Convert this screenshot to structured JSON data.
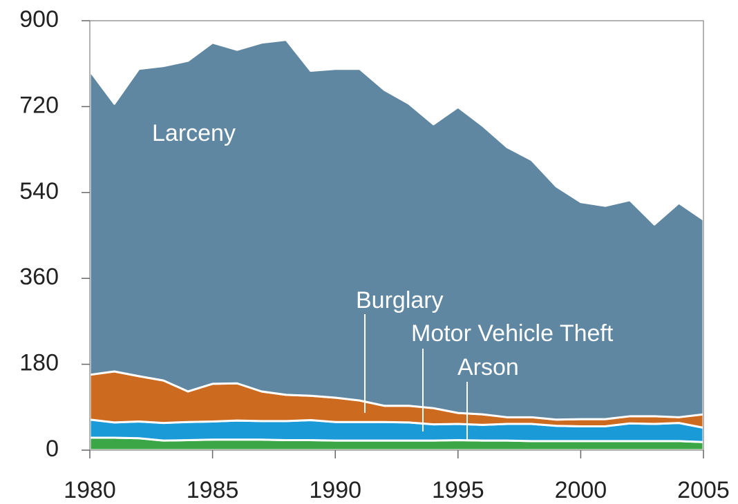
{
  "chart_data": {
    "type": "stacked_area",
    "x": [
      1980,
      1981,
      1982,
      1983,
      1984,
      1985,
      1986,
      1987,
      1988,
      1989,
      1990,
      1991,
      1992,
      1993,
      1994,
      1995,
      1996,
      1997,
      1998,
      1999,
      2000,
      2001,
      2002,
      2003,
      2004,
      2005
    ],
    "series": [
      {
        "name": "Arson",
        "color": "#3aa646",
        "values": [
          26,
          26,
          25,
          20,
          21,
          22,
          22,
          22,
          21,
          21,
          20,
          20,
          20,
          20,
          20,
          21,
          20,
          20,
          19,
          19,
          19,
          19,
          19,
          19,
          19,
          17
        ]
      },
      {
        "name": "Motor Vehicle Theft",
        "color": "#1a9ad6",
        "values": [
          38,
          32,
          35,
          37,
          38,
          38,
          40,
          39,
          40,
          42,
          39,
          39,
          39,
          38,
          34,
          34,
          33,
          35,
          36,
          32,
          31,
          31,
          37,
          36,
          38,
          30
        ]
      },
      {
        "name": "Burglary",
        "color": "#cc6a1f",
        "values": [
          94,
          107,
          95,
          89,
          64,
          79,
          78,
          62,
          55,
          51,
          51,
          45,
          34,
          35,
          34,
          23,
          22,
          14,
          14,
          13,
          15,
          15,
          15,
          16,
          12,
          28
        ]
      },
      {
        "name": "Larceny",
        "color": "#5f87a1",
        "values": [
          637,
          561,
          644,
          659,
          693,
          715,
          699,
          731,
          744,
          681,
          689,
          695,
          662,
          633,
          595,
          641,
          605,
          566,
          539,
          489,
          455,
          447,
          453,
          402,
          449,
          408
        ]
      }
    ],
    "xlim": [
      1980,
      2005
    ],
    "xticks": [
      1980,
      1985,
      1990,
      1995,
      2000,
      2005
    ],
    "ylim": [
      0,
      900
    ],
    "yticks": [
      0,
      180,
      360,
      540,
      720,
      900
    ]
  }
}
